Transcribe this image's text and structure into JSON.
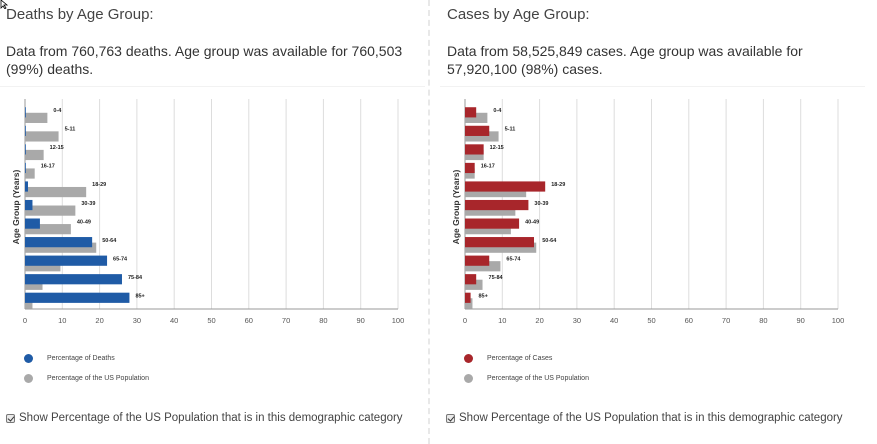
{
  "colors": {
    "deaths": "#1f5ba6",
    "cases": "#a8262b",
    "population": "#a9a9a9",
    "grid": "#dddddd"
  },
  "deaths_panel": {
    "title": "Deaths by Age Group:",
    "description": "Data from 760,763 deaths. Age group was available for 760,503 (99%) deaths.",
    "legend_primary": "Percentage of Deaths",
    "legend_secondary": "Percentage of the US Population",
    "toggle_label": "Show Percentage of the US Population that is in this demographic category"
  },
  "cases_panel": {
    "title": "Cases by Age Group:",
    "description": "Data from 58,525,849 cases. Age group was available for 57,920,100 (98%) cases.",
    "legend_primary": "Percentage of Cases",
    "legend_secondary": "Percentage of the US Population",
    "toggle_label": "Show Percentage of the US Population that is in this demographic category"
  },
  "chart_data": [
    {
      "type": "bar",
      "orientation": "horizontal",
      "ylabel": "Age Group (Years)",
      "xlabel": "",
      "xlim": [
        0,
        100
      ],
      "xticks": [
        "0",
        "10",
        "20",
        "30",
        "40",
        "50",
        "60",
        "70",
        "80",
        "90",
        "100"
      ],
      "categories": [
        "0-4",
        "5-11",
        "12-15",
        "16-17",
        "18-29",
        "30-39",
        "40-49",
        "50-64",
        "65-74",
        "75-84",
        "85+"
      ],
      "series": [
        {
          "name": "Percentage of Deaths",
          "values": [
            0.1,
            0.1,
            0.1,
            0.1,
            0.8,
            2.0,
            4.0,
            18.0,
            22.0,
            26.0,
            28.0
          ]
        },
        {
          "name": "Percentage of the US Population",
          "values": [
            6.0,
            9.0,
            5.0,
            2.6,
            16.4,
            13.5,
            12.3,
            19.1,
            9.5,
            4.7,
            2.0
          ]
        }
      ],
      "legend": "bottom-left"
    },
    {
      "type": "bar",
      "orientation": "horizontal",
      "ylabel": "Age Group (Years)",
      "xlabel": "",
      "xlim": [
        0,
        100
      ],
      "xticks": [
        "0",
        "10",
        "20",
        "30",
        "40",
        "50",
        "60",
        "70",
        "80",
        "90",
        "100"
      ],
      "categories": [
        "0-4",
        "5-11",
        "12-15",
        "16-17",
        "18-29",
        "30-39",
        "40-49",
        "50-64",
        "65-74",
        "75-84",
        "85+"
      ],
      "series": [
        {
          "name": "Percentage of Cases",
          "values": [
            3.0,
            6.5,
            5.0,
            2.6,
            21.5,
            17.0,
            14.5,
            18.5,
            6.5,
            3.0,
            1.5
          ]
        },
        {
          "name": "Percentage of the US Population",
          "values": [
            6.0,
            9.0,
            5.0,
            2.6,
            16.4,
            13.5,
            12.3,
            19.1,
            9.5,
            4.7,
            2.0
          ]
        }
      ],
      "legend": "bottom-left"
    }
  ]
}
